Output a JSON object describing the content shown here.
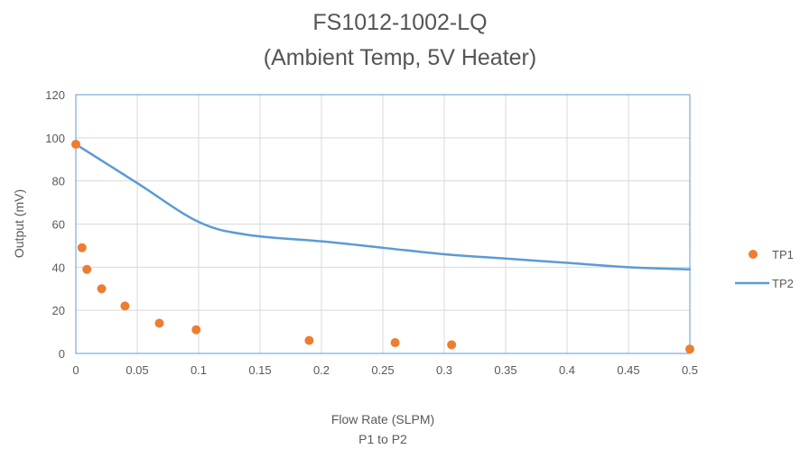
{
  "chart_data": {
    "type": "scatter",
    "title": "FS1012-1002-LQ",
    "subtitle": "(Ambient Temp, 5V Heater)",
    "xlabel": "Flow Rate (SLPM)",
    "xlabel2": "P1 to P2",
    "ylabel": "Output (mV)",
    "xlim": [
      0,
      0.5
    ],
    "ylim": [
      0,
      120
    ],
    "x_ticks": [
      "0",
      "0.05",
      "0.1",
      "0.15",
      "0.2",
      "0.25",
      "0.3",
      "0.35",
      "0.4",
      "0.45",
      "0.5"
    ],
    "y_ticks": [
      "0",
      "20",
      "40",
      "60",
      "80",
      "100",
      "120"
    ],
    "grid": true,
    "legend_position": "right",
    "series": [
      {
        "name": "TP1",
        "kind": "scatter",
        "color": "#ed7d31",
        "points": [
          {
            "x": 0.0,
            "y": 97
          },
          {
            "x": 0.005,
            "y": 49
          },
          {
            "x": 0.009,
            "y": 39
          },
          {
            "x": 0.021,
            "y": 30
          },
          {
            "x": 0.04,
            "y": 22
          },
          {
            "x": 0.068,
            "y": 14
          },
          {
            "x": 0.098,
            "y": 11
          },
          {
            "x": 0.19,
            "y": 6
          },
          {
            "x": 0.26,
            "y": 5
          },
          {
            "x": 0.306,
            "y": 4
          },
          {
            "x": 0.5,
            "y": 2
          }
        ]
      },
      {
        "name": "TP2",
        "kind": "line",
        "color": "#5b9bd5",
        "points": [
          {
            "x": 0.0,
            "y": 97
          },
          {
            "x": 0.05,
            "y": 79
          },
          {
            "x": 0.1,
            "y": 61
          },
          {
            "x": 0.14,
            "y": 55
          },
          {
            "x": 0.2,
            "y": 52
          },
          {
            "x": 0.25,
            "y": 49
          },
          {
            "x": 0.3,
            "y": 46
          },
          {
            "x": 0.35,
            "y": 44
          },
          {
            "x": 0.4,
            "y": 42
          },
          {
            "x": 0.45,
            "y": 40
          },
          {
            "x": 0.5,
            "y": 39
          }
        ]
      }
    ]
  }
}
